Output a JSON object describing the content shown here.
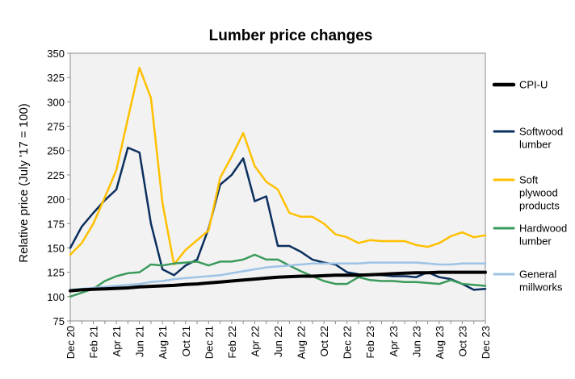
{
  "chart_data": {
    "type": "line",
    "title": "Lumber price changes",
    "xlabel": "",
    "ylabel": "Relative price (July '17 = 100)",
    "ylim": [
      75,
      350
    ],
    "yticks": [
      75,
      100,
      125,
      150,
      175,
      200,
      225,
      250,
      275,
      300,
      325,
      350
    ],
    "grid": false,
    "legend_position": "right",
    "x_tick_labels": [
      "Dec 20",
      "Feb 21",
      "Apr 21",
      "Jun 21",
      "Aug 21",
      "Oct 21",
      "Dec 21",
      "Feb 22",
      "Apr 22",
      "Jun 22",
      "Aug 22",
      "Oct 22",
      "Dec 22",
      "Feb 23",
      "Apr 23",
      "Jun 23",
      "Aug 23",
      "Oct 23",
      "Dec 23"
    ],
    "x": [
      "Dec 20",
      "Jan 21",
      "Feb 21",
      "Mar 21",
      "Apr 21",
      "May 21",
      "Jun 21",
      "Jul 21",
      "Aug 21",
      "Sep 21",
      "Oct 21",
      "Nov 21",
      "Dec 21",
      "Jan 22",
      "Feb 22",
      "Mar 22",
      "Apr 22",
      "May 22",
      "Jun 22",
      "Jul 22",
      "Aug 22",
      "Sep 22",
      "Oct 22",
      "Nov 22",
      "Dec 22",
      "Jan 23",
      "Feb 23",
      "Mar 23",
      "Apr 23",
      "May 23",
      "Jun 23",
      "Jul 23",
      "Aug 23",
      "Sep 23",
      "Oct 23",
      "Nov 23",
      "Dec 23"
    ],
    "series": [
      {
        "name": "CPI-U",
        "color": "#000000",
        "width": 4,
        "values": [
          106,
          107,
          107.5,
          108,
          108.5,
          109,
          110,
          110.5,
          111,
          111.5,
          112.5,
          113,
          114,
          115,
          116,
          117,
          118,
          119,
          120,
          120.5,
          121,
          121,
          121.5,
          122,
          122,
          122,
          122.5,
          123,
          123.5,
          124,
          124.5,
          124.5,
          125,
          125,
          125,
          125,
          125
        ]
      },
      {
        "name": "Softwood lumber",
        "color": "#0b2f5e",
        "width": 2.5,
        "values": [
          150,
          172,
          186,
          199,
          210,
          253,
          248,
          175,
          128,
          122,
          132,
          138,
          170,
          215,
          225,
          242,
          198,
          203,
          152,
          152,
          146,
          138,
          135,
          133,
          125,
          123,
          122,
          122,
          121,
          121,
          120,
          125,
          120,
          118,
          113,
          107,
          108
        ]
      },
      {
        "name": "Soft plywood products",
        "color": "#ffc000",
        "width": 2.5,
        "values": [
          143,
          155,
          175,
          202,
          230,
          283,
          335,
          304,
          196,
          133,
          148,
          158,
          168,
          222,
          244,
          268,
          234,
          218,
          210,
          186,
          182,
          182,
          175,
          164,
          161,
          155,
          158,
          157,
          157,
          157,
          153,
          151,
          155,
          162,
          166,
          161,
          163
        ]
      },
      {
        "name": "Hardwood lumber",
        "color": "#3a9a5b",
        "width": 2.5,
        "values": [
          100,
          104,
          108,
          116,
          121,
          124,
          125,
          133,
          132,
          134,
          135,
          136,
          132,
          136,
          136,
          138,
          143,
          138,
          138,
          132,
          126,
          121,
          116,
          113,
          113,
          120,
          117,
          116,
          116,
          115,
          115,
          114,
          113,
          117,
          113,
          112,
          111
        ]
      },
      {
        "name": "General millworks",
        "color": "#9dc3e6",
        "width": 2.5,
        "values": [
          107,
          108,
          109,
          110,
          111,
          112,
          113,
          115,
          116,
          118,
          119,
          120,
          121,
          122,
          124,
          126,
          128,
          130,
          131,
          132,
          133,
          134,
          134,
          134,
          134,
          134,
          135,
          135,
          135,
          135,
          135,
          134,
          133,
          133,
          134,
          134,
          134
        ]
      }
    ],
    "legend": [
      {
        "name": "CPI-U",
        "lines": [
          "CPI-U"
        ]
      },
      {
        "name": "Softwood lumber",
        "lines": [
          "Softwood",
          "lumber"
        ]
      },
      {
        "name": "Soft plywood products",
        "lines": [
          "Soft",
          "plywood",
          "products"
        ]
      },
      {
        "name": "Hardwood lumber",
        "lines": [
          "Hardwood",
          "lumber"
        ]
      },
      {
        "name": "General millworks",
        "lines": [
          "General",
          "millworks"
        ]
      }
    ]
  }
}
